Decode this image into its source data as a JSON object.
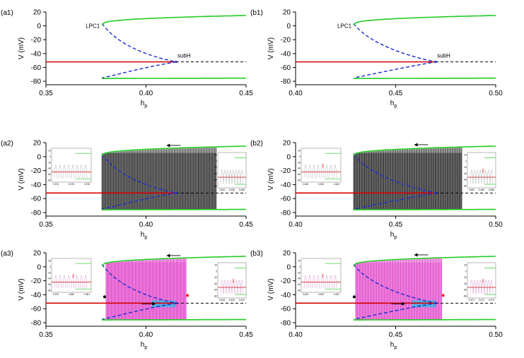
{
  "chart_data": [
    {
      "id": "a1",
      "type": "line",
      "panel_label": "(a1)",
      "xlabel": "h",
      "xlabel_sub": "p",
      "ylabel": "V (mV)",
      "xlim": [
        0.35,
        0.45
      ],
      "ylim": [
        -85,
        20
      ],
      "xticks": [
        0.35,
        0.4,
        0.45
      ],
      "xtick_labels": [
        "0.35",
        "0.40",
        "0.45"
      ],
      "yticks": [
        20,
        0,
        -20,
        -40,
        -60,
        -80
      ],
      "lpc_h": 0.378,
      "subh_h": 0.415,
      "end_h": 0.45,
      "annotations": {
        "lpc": "LPC1",
        "subh": "subH"
      },
      "insets": [],
      "arrows": []
    },
    {
      "id": "b1",
      "type": "line",
      "panel_label": "(b1)",
      "xlabel": "h",
      "xlabel_sub": "p",
      "ylabel": "V (mV)",
      "xlim": [
        0.4,
        0.5
      ],
      "ylim": [
        -85,
        20
      ],
      "xticks": [
        0.4,
        0.45,
        0.5
      ],
      "xtick_labels": [
        "0.40",
        "0.45",
        "0.50"
      ],
      "yticks": [
        20,
        0,
        -20,
        -40,
        -60,
        -80
      ],
      "lpc_h": 0.429,
      "subh_h": 0.47,
      "end_h": 0.5,
      "annotations": {
        "lpc": "LPC1",
        "subh": "subH"
      },
      "insets": [],
      "arrows": []
    },
    {
      "id": "a2",
      "type": "line",
      "panel_label": "(a2)",
      "xlabel": "h",
      "xlabel_sub": "p",
      "ylabel": "V (mV)",
      "xlim": [
        0.35,
        0.45
      ],
      "ylim": [
        -85,
        20
      ],
      "xticks": [
        0.35,
        0.4,
        0.45
      ],
      "xtick_labels": [
        "0.35",
        "0.40",
        "0.45"
      ],
      "yticks": [
        20,
        0,
        -20,
        -40,
        -60,
        -80
      ],
      "lpc_h": 0.378,
      "subh_h": 0.415,
      "end_h": 0.45,
      "sweep": {
        "h_start": 0.378,
        "h_end": 0.435,
        "color": "#000000"
      },
      "arrows": [
        {
          "dir": "left",
          "h": 0.413,
          "v": 16
        }
      ],
      "insets": [
        {
          "x_ticks": [
            "0.374",
            "0.376",
            "0.378"
          ],
          "y_ticks": [
            "20",
            "0",
            "-20",
            "-40",
            "-60",
            "-80"
          ]
        },
        {
          "x_ticks": [
            "0.434",
            "0.436",
            "0.438"
          ],
          "y_ticks": [
            "20",
            "0",
            "-20",
            "-40",
            "-60",
            "-80"
          ]
        }
      ]
    },
    {
      "id": "b2",
      "type": "line",
      "panel_label": "(b2)",
      "xlabel": "h",
      "xlabel_sub": "p",
      "ylabel": "V (mV)",
      "xlim": [
        0.4,
        0.5
      ],
      "ylim": [
        -85,
        20
      ],
      "xticks": [
        0.4,
        0.45,
        0.5
      ],
      "xtick_labels": [
        "0.40",
        "0.45",
        "0.50"
      ],
      "yticks": [
        20,
        0,
        -20,
        -40,
        -60,
        -80
      ],
      "lpc_h": 0.429,
      "subh_h": 0.47,
      "end_h": 0.5,
      "sweep": {
        "h_start": 0.429,
        "h_end": 0.483,
        "color": "#000000"
      },
      "arrows": [
        {
          "dir": "left",
          "h": 0.462,
          "v": 17
        }
      ],
      "insets": [
        {
          "x_ticks": [
            "0.428",
            "0.430",
            "0.432"
          ],
          "y_ticks": [
            "20",
            "0",
            "-20",
            "-40",
            "-60",
            "-80"
          ]
        },
        {
          "x_ticks": [
            "0.482",
            "0.484",
            "0.486"
          ],
          "y_ticks": [
            "20",
            "0",
            "-20",
            "-40",
            "-60",
            "-80"
          ]
        }
      ]
    },
    {
      "id": "a3",
      "type": "line",
      "panel_label": "(a3)",
      "xlabel": "h",
      "xlabel_sub": "p",
      "ylabel": "V (mV)",
      "xlim": [
        0.35,
        0.45
      ],
      "ylim": [
        -85,
        20
      ],
      "xticks": [
        0.35,
        0.4,
        0.45
      ],
      "xtick_labels": [
        "0.35",
        "0.40",
        "0.45"
      ],
      "yticks": [
        20,
        0,
        -20,
        -40,
        -60,
        -80
      ],
      "lpc_h": 0.378,
      "subh_h": 0.415,
      "end_h": 0.45,
      "sweep": {
        "h_start": 0.38,
        "h_end": 0.42,
        "color": "#e040c8"
      },
      "arrows": [
        {
          "dir": "left",
          "h": 0.413,
          "v": 16
        },
        {
          "dir": "right",
          "h": 0.402,
          "v": -53
        }
      ],
      "insets": [
        {
          "x_ticks": [
            "0.379",
            "0.380",
            "0.381"
          ],
          "y_ticks": [
            "20",
            "0",
            "-20",
            "-40",
            "-60",
            "-80"
          ]
        },
        {
          "x_ticks": [
            "0.418",
            "0.420",
            "0.422"
          ],
          "y_ticks": [
            "20",
            "0",
            "-20",
            "-40",
            "-60",
            "-80"
          ]
        }
      ]
    },
    {
      "id": "b3",
      "type": "line",
      "panel_label": "(b3)",
      "xlabel": "h",
      "xlabel_sub": "p",
      "ylabel": "V (mV)",
      "xlim": [
        0.4,
        0.5
      ],
      "ylim": [
        -85,
        20
      ],
      "xticks": [
        0.4,
        0.45,
        0.5
      ],
      "xtick_labels": [
        "0.40",
        "0.45",
        "0.50"
      ],
      "yticks": [
        20,
        0,
        -20,
        -40,
        -60,
        -80
      ],
      "lpc_h": 0.429,
      "subh_h": 0.47,
      "end_h": 0.5,
      "sweep": {
        "h_start": 0.43,
        "h_end": 0.473,
        "color": "#e040c8"
      },
      "arrows": [
        {
          "dir": "left",
          "h": 0.462,
          "v": 17
        },
        {
          "dir": "right",
          "h": 0.452,
          "v": -53
        }
      ],
      "insets": [
        {
          "x_ticks": [
            "0.429",
            "0.430",
            "0.431"
          ],
          "y_ticks": [
            "20",
            "0",
            "-20",
            "-40",
            "-60",
            "-80"
          ]
        },
        {
          "x_ticks": [
            "0.471",
            "0.472",
            "0.473"
          ],
          "y_ticks": [
            "20",
            "0",
            "-20",
            "-40",
            "-60",
            "-80"
          ]
        }
      ]
    }
  ],
  "colors": {
    "stable_ss": "#d60000",
    "periodic": "#22cc22",
    "unstable": "#1a2fd0",
    "spikes_a2b2": "#000000",
    "spikes_a3b3": "#e040c8",
    "small_osc": "#20c0e0",
    "marker_black": "#000000",
    "marker_red": "#ff2020"
  }
}
